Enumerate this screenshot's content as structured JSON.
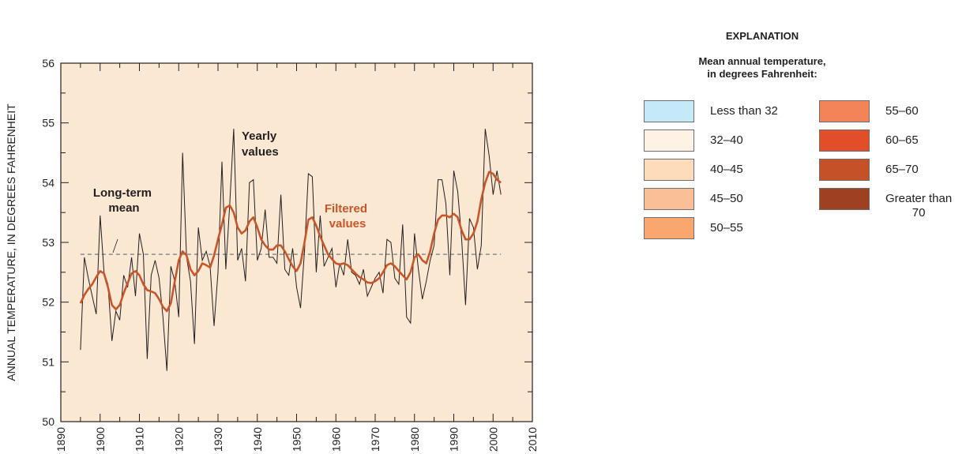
{
  "chart_data": {
    "type": "line",
    "ylabel": "ANNUAL TEMPERATURE, IN DEGREES FAHRENHEIT",
    "xlabel": "",
    "xlim": [
      1890,
      2010
    ],
    "ylim": [
      50,
      56
    ],
    "x_ticks": [
      "1890",
      "1900",
      "1910",
      "1920",
      "1930",
      "1940",
      "1950",
      "1960",
      "1970",
      "1980",
      "1990",
      "2000",
      "2010"
    ],
    "y_ticks": [
      "50",
      "51",
      "52",
      "53",
      "54",
      "55",
      "56"
    ],
    "plot_background": "#fbe8d3",
    "long_term_mean": 52.8,
    "annotations": {
      "yearly": "Yearly values",
      "filtered": "Filtered values",
      "mean": "Long-term mean"
    },
    "series": [
      {
        "name": "Yearly values",
        "color": "#231f20",
        "x": [
          1895,
          1896,
          1897,
          1898,
          1899,
          1900,
          1901,
          1902,
          1903,
          1904,
          1905,
          1906,
          1907,
          1908,
          1909,
          1910,
          1911,
          1912,
          1913,
          1914,
          1915,
          1916,
          1917,
          1918,
          1919,
          1920,
          1921,
          1922,
          1923,
          1924,
          1925,
          1926,
          1927,
          1928,
          1929,
          1930,
          1931,
          1932,
          1933,
          1934,
          1935,
          1936,
          1937,
          1938,
          1939,
          1940,
          1941,
          1942,
          1943,
          1944,
          1945,
          1946,
          1947,
          1948,
          1949,
          1950,
          1951,
          1952,
          1953,
          1954,
          1955,
          1956,
          1957,
          1958,
          1959,
          1960,
          1961,
          1962,
          1963,
          1964,
          1965,
          1966,
          1967,
          1968,
          1969,
          1970,
          1971,
          1972,
          1973,
          1974,
          1975,
          1976,
          1977,
          1978,
          1979,
          1980,
          1981,
          1982,
          1983,
          1984,
          1985,
          1986,
          1987,
          1988,
          1989,
          1990,
          1991,
          1992,
          1993,
          1994,
          1995,
          1996,
          1997,
          1998,
          1999,
          2000,
          2001,
          2002
        ],
        "y": [
          51.2,
          52.75,
          52.4,
          52.1,
          51.8,
          53.45,
          52.5,
          52.3,
          51.35,
          51.85,
          51.7,
          52.45,
          52.25,
          52.75,
          52.1,
          53.15,
          52.8,
          51.05,
          52.45,
          52.7,
          52.4,
          51.75,
          50.85,
          52.6,
          52.35,
          51.75,
          54.5,
          52.75,
          52.35,
          51.3,
          53.25,
          52.7,
          52.85,
          52.6,
          51.6,
          52.5,
          54.35,
          52.55,
          53.65,
          54.9,
          52.7,
          52.9,
          52.35,
          54.0,
          54.05,
          52.7,
          52.9,
          53.55,
          52.75,
          52.75,
          52.65,
          53.8,
          52.55,
          52.45,
          52.9,
          52.25,
          51.9,
          52.85,
          54.15,
          54.1,
          52.5,
          53.45,
          52.6,
          52.75,
          52.9,
          52.25,
          52.65,
          52.45,
          53.05,
          52.5,
          52.45,
          52.3,
          52.55,
          52.1,
          52.25,
          52.4,
          52.5,
          52.15,
          53.05,
          53.0,
          52.4,
          52.3,
          53.3,
          51.75,
          51.65,
          53.15,
          52.55,
          52.05,
          52.35,
          52.7,
          52.95,
          54.05,
          54.05,
          53.65,
          52.45,
          54.2,
          53.85,
          53.05,
          51.95,
          53.4,
          53.25,
          52.55,
          52.95,
          54.9,
          54.45,
          53.8,
          54.2,
          53.8
        ]
      },
      {
        "name": "Filtered values",
        "color": "#c8562a",
        "x": [
          1895,
          1896,
          1897,
          1898,
          1899,
          1900,
          1901,
          1902,
          1903,
          1904,
          1905,
          1906,
          1907,
          1908,
          1909,
          1910,
          1911,
          1912,
          1913,
          1914,
          1915,
          1916,
          1917,
          1918,
          1919,
          1920,
          1921,
          1922,
          1923,
          1924,
          1925,
          1926,
          1927,
          1928,
          1929,
          1930,
          1931,
          1932,
          1933,
          1934,
          1935,
          1936,
          1937,
          1938,
          1939,
          1940,
          1941,
          1942,
          1943,
          1944,
          1945,
          1946,
          1947,
          1948,
          1949,
          1950,
          1951,
          1952,
          1953,
          1954,
          1955,
          1956,
          1957,
          1958,
          1959,
          1960,
          1961,
          1962,
          1963,
          1964,
          1965,
          1966,
          1967,
          1968,
          1969,
          1970,
          1971,
          1972,
          1973,
          1974,
          1975,
          1976,
          1977,
          1978,
          1979,
          1980,
          1981,
          1982,
          1983,
          1984,
          1985,
          1986,
          1987,
          1988,
          1989,
          1990,
          1991,
          1992,
          1993,
          1994,
          1995,
          1996,
          1997,
          1998,
          1999,
          2000,
          2001,
          2002
        ],
        "y": [
          51.98,
          52.12,
          52.22,
          52.3,
          52.42,
          52.52,
          52.48,
          52.25,
          51.95,
          51.88,
          51.95,
          52.15,
          52.32,
          52.48,
          52.52,
          52.45,
          52.3,
          52.2,
          52.18,
          52.15,
          52.05,
          51.92,
          51.85,
          51.98,
          52.35,
          52.7,
          52.85,
          52.78,
          52.55,
          52.45,
          52.52,
          52.65,
          52.62,
          52.58,
          52.78,
          53.05,
          53.3,
          53.58,
          53.62,
          53.5,
          53.25,
          53.15,
          53.2,
          53.35,
          53.42,
          53.25,
          53.05,
          52.95,
          52.88,
          52.88,
          52.95,
          52.95,
          52.85,
          52.72,
          52.6,
          52.52,
          52.65,
          53.0,
          53.38,
          53.42,
          53.28,
          53.1,
          52.95,
          52.8,
          52.72,
          52.65,
          52.63,
          52.65,
          52.62,
          52.55,
          52.48,
          52.42,
          52.38,
          52.33,
          52.32,
          52.35,
          52.4,
          52.5,
          52.62,
          52.65,
          52.6,
          52.52,
          52.45,
          52.38,
          52.5,
          52.75,
          52.8,
          52.7,
          52.65,
          52.85,
          53.15,
          53.38,
          53.45,
          53.45,
          53.42,
          53.48,
          53.42,
          53.2,
          53.05,
          53.05,
          53.15,
          53.35,
          53.72,
          54.0,
          54.18,
          54.15,
          54.05,
          54.0
        ]
      }
    ]
  },
  "legend": {
    "title": "EXPLANATION",
    "subtitle_line1": "Mean annual temperature,",
    "subtitle_line2": "in degrees Fahrenheit:",
    "items": [
      {
        "label": "Less than 32",
        "color": "#c6e9f8"
      },
      {
        "label": "32–40",
        "color": "#fdf2e3"
      },
      {
        "label": "40–45",
        "color": "#fddcbc"
      },
      {
        "label": "45–50",
        "color": "#fbbf98"
      },
      {
        "label": "50–55",
        "color": "#f9a66f"
      },
      {
        "label": "55–60",
        "color": "#f2845a"
      },
      {
        "label": "60–65",
        "color": "#e24e29"
      },
      {
        "label": "65–70",
        "color": "#c45128"
      },
      {
        "label": "Greater than",
        "label2": "70",
        "color": "#9e4123"
      }
    ]
  }
}
